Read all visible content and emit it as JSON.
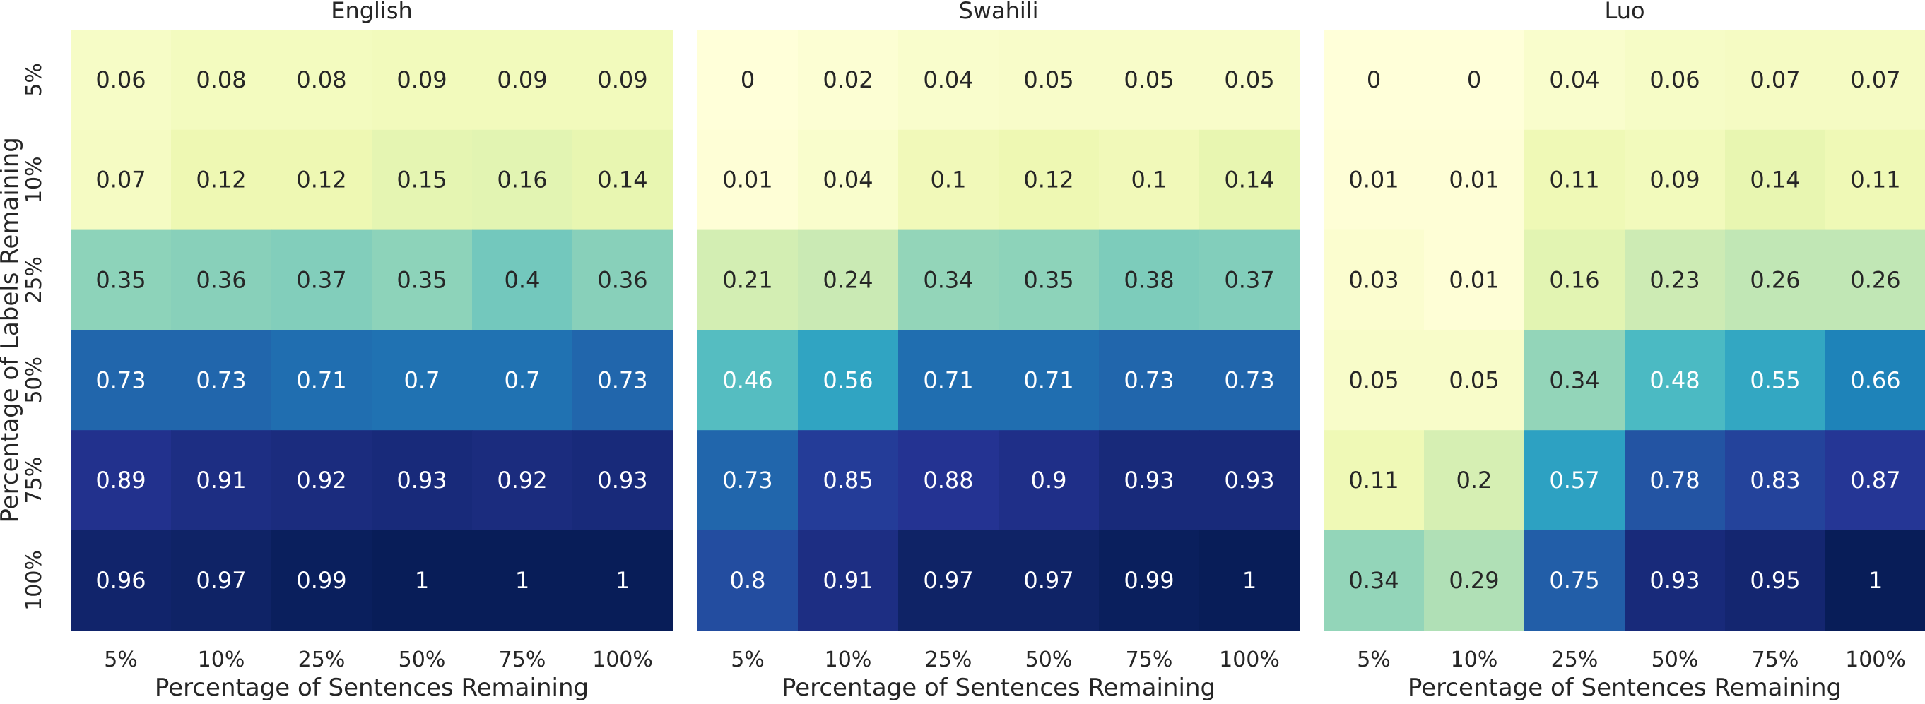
{
  "chart_data": [
    {
      "type": "heatmap",
      "title": "English",
      "xlabel": "Percentage of Sentences Remaining",
      "ylabel": "Percentage of Labels Remaining",
      "x_categories": [
        "5%",
        "10%",
        "25%",
        "50%",
        "75%",
        "100%"
      ],
      "y_categories": [
        "5%",
        "10%",
        "25%",
        "50%",
        "75%",
        "100%"
      ],
      "values": [
        [
          0.06,
          0.08,
          0.08,
          0.09,
          0.09,
          0.09
        ],
        [
          0.07,
          0.12,
          0.12,
          0.15,
          0.16,
          0.14
        ],
        [
          0.35,
          0.36,
          0.37,
          0.35,
          0.4,
          0.36
        ],
        [
          0.73,
          0.73,
          0.71,
          0.7,
          0.7,
          0.73
        ],
        [
          0.89,
          0.91,
          0.92,
          0.93,
          0.92,
          0.93
        ],
        [
          0.96,
          0.97,
          0.99,
          1,
          1,
          1
        ]
      ],
      "vmin": 0,
      "vmax": 1,
      "colormap": "YlGnBu"
    },
    {
      "type": "heatmap",
      "title": "Swahili",
      "xlabel": "Percentage of Sentences Remaining",
      "ylabel": "",
      "x_categories": [
        "5%",
        "10%",
        "25%",
        "50%",
        "75%",
        "100%"
      ],
      "y_categories": [
        "5%",
        "10%",
        "25%",
        "50%",
        "75%",
        "100%"
      ],
      "values": [
        [
          0,
          0.02,
          0.04,
          0.05,
          0.05,
          0.05
        ],
        [
          0.01,
          0.04,
          0.1,
          0.12,
          0.1,
          0.14
        ],
        [
          0.21,
          0.24,
          0.34,
          0.35,
          0.38,
          0.37
        ],
        [
          0.46,
          0.56,
          0.71,
          0.71,
          0.73,
          0.73
        ],
        [
          0.73,
          0.85,
          0.88,
          0.9,
          0.93,
          0.93
        ],
        [
          0.8,
          0.91,
          0.97,
          0.97,
          0.99,
          1
        ]
      ],
      "vmin": 0,
      "vmax": 1,
      "colormap": "YlGnBu"
    },
    {
      "type": "heatmap",
      "title": "Luo",
      "xlabel": "Percentage of Sentences Remaining",
      "ylabel": "",
      "x_categories": [
        "5%",
        "10%",
        "25%",
        "50%",
        "75%",
        "100%"
      ],
      "y_categories": [
        "5%",
        "10%",
        "25%",
        "50%",
        "75%",
        "100%"
      ],
      "values": [
        [
          0,
          0,
          0.04,
          0.06,
          0.07,
          0.07
        ],
        [
          0.01,
          0.01,
          0.11,
          0.09,
          0.14,
          0.11
        ],
        [
          0.03,
          0.01,
          0.16,
          0.23,
          0.26,
          0.26
        ],
        [
          0.05,
          0.05,
          0.34,
          0.48,
          0.55,
          0.66
        ],
        [
          0.11,
          0.2,
          0.57,
          0.78,
          0.83,
          0.87
        ],
        [
          0.34,
          0.29,
          0.75,
          0.93,
          0.95,
          1
        ]
      ],
      "vmin": 0,
      "vmax": 1,
      "colormap": "YlGnBu"
    }
  ]
}
